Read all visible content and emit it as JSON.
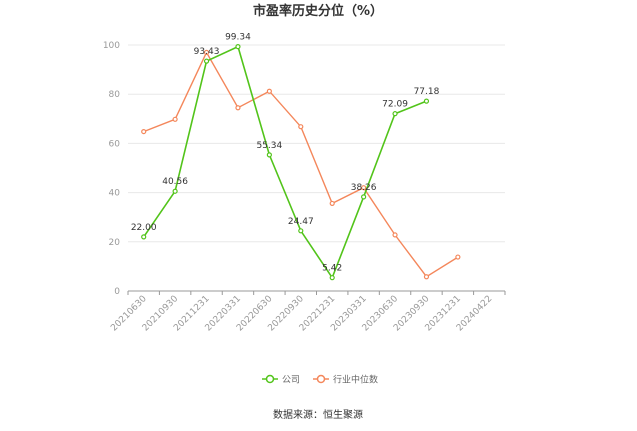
{
  "chart_data": {
    "type": "line",
    "title": "市盈率历史分位（%）",
    "categories": [
      "20210630",
      "20210930",
      "20211231",
      "20220331",
      "20220630",
      "20220930",
      "20221231",
      "20230331",
      "20230630",
      "20230930",
      "20231231",
      "20240422"
    ],
    "ylim": [
      0,
      100
    ],
    "yticks": [
      0,
      20,
      40,
      60,
      80,
      100
    ],
    "grid": true,
    "legend_position": "bottom",
    "series": [
      {
        "name": "公司",
        "color": "#52c41a",
        "values": [
          22.0,
          40.56,
          93.43,
          99.34,
          55.34,
          24.47,
          5.42,
          38.26,
          72.09,
          77.18,
          null,
          null
        ],
        "labels": [
          "22.00",
          "40.56",
          "93.43",
          "99.34",
          "55.34",
          "24.47",
          "5.42",
          "38.26",
          "72.09",
          "77.18",
          null,
          null
        ]
      },
      {
        "name": "行业中位数",
        "color": "#f4875b",
        "values": [
          64.8,
          69.8,
          97.0,
          74.5,
          81.2,
          66.8,
          35.6,
          42.0,
          22.8,
          5.8,
          13.8,
          null
        ]
      }
    ],
    "source": "数据来源：恒生聚源"
  }
}
